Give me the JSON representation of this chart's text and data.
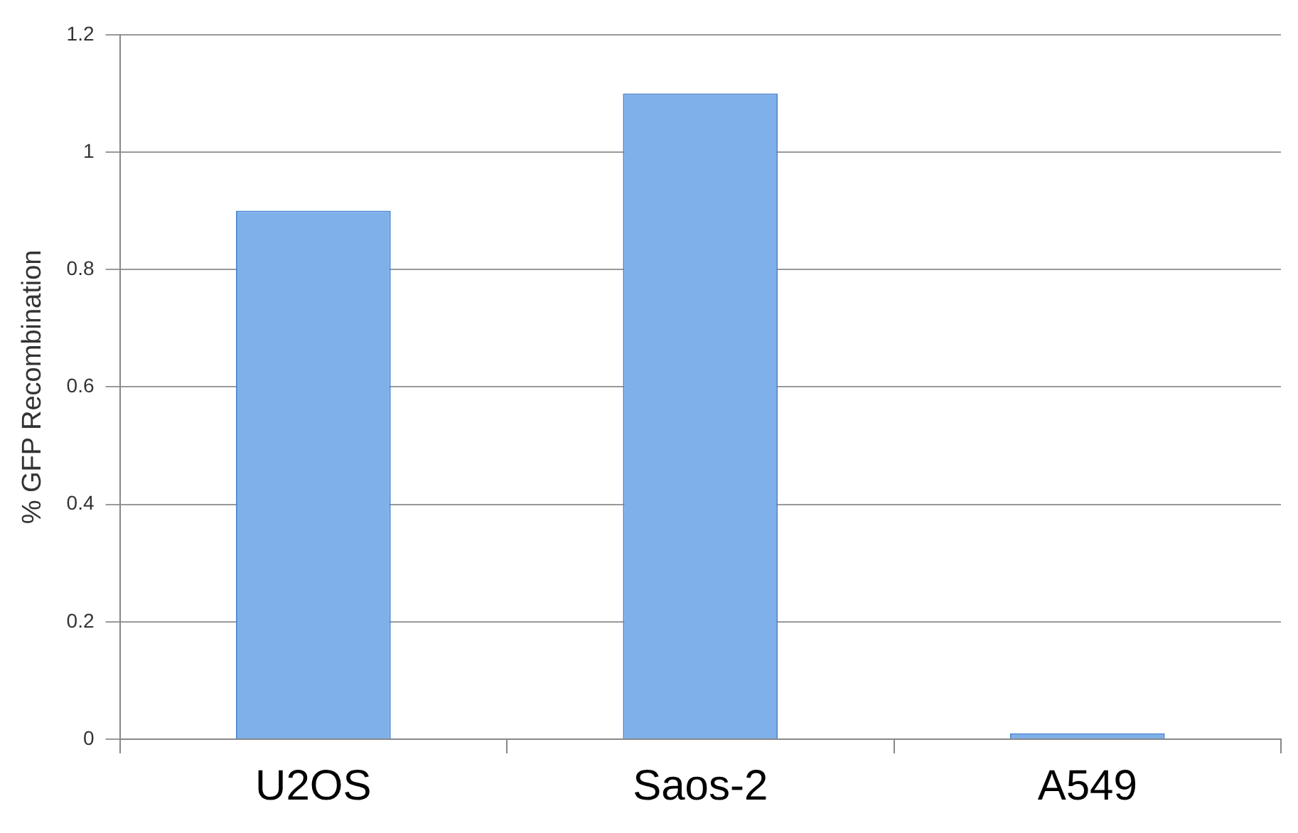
{
  "chart_data": {
    "type": "bar",
    "ylabel": "% GFP Recombination",
    "categories": [
      "U2OS",
      "Saos-2",
      "A549"
    ],
    "values": [
      0.9,
      1.1,
      0.01
    ],
    "color": "#7fb0ea",
    "ylim": [
      0,
      1.2
    ],
    "yticks": [
      0,
      0.2,
      0.4,
      0.6,
      0.8,
      1,
      1.2
    ],
    "grid": "y",
    "legend": false
  }
}
